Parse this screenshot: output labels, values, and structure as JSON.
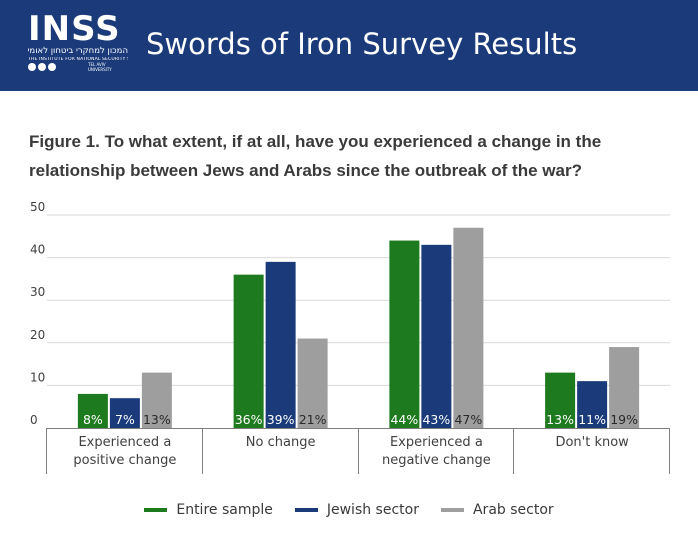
{
  "header": {
    "logo": {
      "name": "INSS",
      "hebrew": "המכון למחקרי ביטחון לאומי",
      "english": "THE INSTITUTE FOR NATIONAL SECURITY STUDIES",
      "university": "TEL AVIV UNIVERSITY"
    },
    "title": "Swords of Iron Survey Results",
    "background_color": "#1a3a7a"
  },
  "figure_title": "Figure 1. To what extent, if at all, have you experienced a change in the relationship between Jews and Arabs since the outbreak of the war?",
  "chart_data": {
    "type": "bar",
    "categories": [
      "Experienced a positive change",
      "No change",
      "Experienced a negative change",
      "Don't know"
    ],
    "series": [
      {
        "name": "Entire sample",
        "color": "#1e7a1e",
        "values": [
          8,
          36,
          44,
          13
        ],
        "labels": [
          "8%",
          "36%",
          "44%",
          "13%"
        ]
      },
      {
        "name": "Jewish sector",
        "color": "#1a3a7a",
        "values": [
          7,
          39,
          43,
          11
        ],
        "labels": [
          "7%",
          "39%",
          "43%",
          "11%"
        ]
      },
      {
        "name": "Arab sector",
        "color": "#9e9e9e",
        "values": [
          13,
          21,
          47,
          19
        ],
        "labels": [
          "13%",
          "21%",
          "47%",
          "19%"
        ]
      }
    ],
    "yticks": [
      "0",
      "10",
      "20",
      "30",
      "40",
      "50"
    ],
    "ylim": [
      0,
      50
    ],
    "grid": true,
    "legend_position": "bottom"
  }
}
